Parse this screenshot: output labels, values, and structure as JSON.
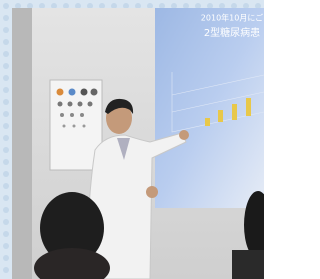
{
  "slide": {
    "title": "2010年10月にご",
    "subtitle": "2型糖尿病患"
  }
}
